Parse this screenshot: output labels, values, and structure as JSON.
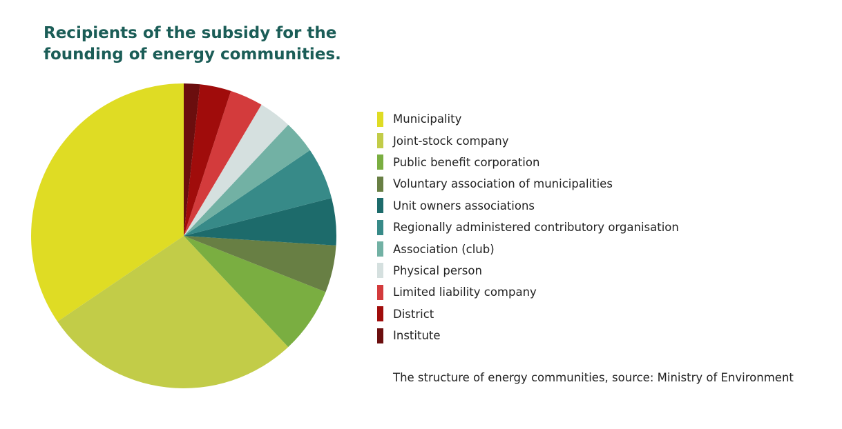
{
  "chart_data": {
    "type": "pie",
    "title": "Recipients of the subsidy for the founding of energy communities.",
    "categories": [
      "Municipality",
      "Joint-stock company",
      "Public benefit corporation",
      "Voluntary association of municipalities",
      "Unit owners associations",
      "Regionally administered contributory organisation",
      "Association (club)",
      "Physical person",
      "Limited liability company",
      "District",
      "Institute"
    ],
    "values": [
      34.5,
      27.5,
      7,
      5,
      5,
      5.5,
      3.5,
      3.5,
      3.5,
      3.3,
      1.7
    ],
    "colors": [
      "#dfdc24",
      "#c2cc48",
      "#7aae41",
      "#687f44",
      "#1d6b6b",
      "#378a88",
      "#72b1a4",
      "#d5e0df",
      "#d33b3c",
      "#a00c0b",
      "#6b0e0e"
    ],
    "note": "The structure of energy communities, source: Ministry of Environment"
  }
}
